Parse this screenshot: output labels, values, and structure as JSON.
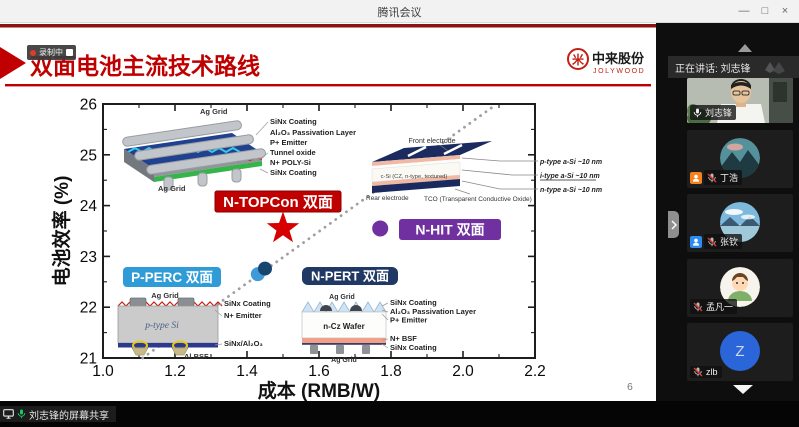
{
  "window": {
    "title": "腾讯会议",
    "minimize": "—",
    "restore": "□",
    "close": "×"
  },
  "recording": {
    "label": "录制中"
  },
  "slide": {
    "title": "双面电池主流技术路线",
    "logo": {
      "glyph": "米",
      "company": "中来股份",
      "brand": "JOLYWOOD"
    },
    "page_number": "6"
  },
  "chart_data": {
    "type": "scatter",
    "title": "",
    "xlabel": "成本 (RMB/W)",
    "ylabel": "电池效率 (%)",
    "xlim": [
      1.0,
      2.2
    ],
    "ylim": [
      21,
      26
    ],
    "grid": false,
    "x_tick_values": [
      1.0,
      1.2,
      1.4,
      1.6,
      1.8,
      2.0,
      2.2
    ],
    "x_tick_labels": [
      "1.0",
      "1.2",
      "1.4",
      "1.6",
      "1.8",
      "2.0",
      "2.2"
    ],
    "y_tick_values": [
      21,
      22,
      23,
      24,
      25,
      26
    ],
    "y_tick_labels": [
      "21",
      "22",
      "23",
      "24",
      "25",
      "26"
    ],
    "series": [
      {
        "name": "P-PERC 双面",
        "marker": "circle",
        "points": [
          {
            "x": 1.43,
            "y": 22.65,
            "color": "#3f9bd8",
            "size": 7
          },
          {
            "x": 1.45,
            "y": 22.76,
            "color": "#17456e",
            "size": 7
          }
        ]
      },
      {
        "name": "N-TOPCon 双面",
        "marker": "star",
        "points": [
          {
            "x": 1.5,
            "y": 23.55,
            "color": "#d60000",
            "size": 17
          }
        ]
      },
      {
        "name": "N-HIT 双面",
        "marker": "circle",
        "points": [
          {
            "x": 1.77,
            "y": 23.55,
            "color": "#7030a0",
            "size": 8
          }
        ]
      }
    ],
    "trend_line": {
      "style": "dotted",
      "color": "#9f9f9f",
      "from": {
        "x": 1.11,
        "y": 21.0
      },
      "to": {
        "x": 2.09,
        "y": 25.98
      }
    },
    "labels": {
      "topcon": "N-TOPCon 双面",
      "hit": "N-HIT 双面",
      "perc": "P-PERC 双面",
      "pert": "N-PERT 双面"
    },
    "label_colors": {
      "topcon": "#c00000",
      "hit": "#7030a0",
      "perc": "#2f9cd8",
      "pert": "#1f3864"
    },
    "diagram_annotations": {
      "topcon": {
        "grid_top": "Ag Grid",
        "grid_bottom": "Ag Grid",
        "layers": [
          "SiNx Coating",
          "Al₂O₃ Passivation Layer",
          "P+ Emitter",
          "Tunnel oxide",
          "N+ POLY-Si",
          "SiNx Coating"
        ]
      },
      "hit": {
        "front_electrode": "Front electrode",
        "rear_electrode": "Rear electrode",
        "body": "c-Si (CZ, n-type, textured)",
        "tco": "TCO (Transparent Conductive Oxide)",
        "layers": [
          "p-type a-Si ~10 nm",
          "i-type a-Si ~10 nm",
          "n-type a-Si ~10 nm"
        ]
      },
      "perc": {
        "grid_top": "Ag Grid",
        "body": "p-type Si",
        "layers": [
          "SiNx Coating",
          "N+ Emitter",
          "SiNx/Al₂O₃"
        ],
        "bsf": "Al BSF"
      },
      "pert": {
        "grid_top": "Ag Grid",
        "grid_bottom": "Ag Grid",
        "body": "n-Cz Wafer",
        "layers_top": [
          "SiNx Coating",
          "Al₂O₃ Passivation Layer",
          "P+ Emitter"
        ],
        "layers_bottom": [
          "N+ BSF",
          "SiNx Coating"
        ]
      }
    }
  },
  "sidebar": {
    "speaking_banner": "正在讲话: 刘志锋",
    "participants": [
      {
        "name": "刘志锋",
        "mic": "on",
        "speaking": true
      },
      {
        "name": "丁浩",
        "mic": "muted",
        "badge": "host-orange"
      },
      {
        "name": "张钦",
        "mic": "muted",
        "badge": "member-blue"
      },
      {
        "name": "孟凡一",
        "mic": "muted"
      },
      {
        "name": "zlb",
        "mic": "muted",
        "avatar_letter": "Z"
      }
    ]
  },
  "share_bar": {
    "label": "刘志锋的屏幕共享"
  }
}
